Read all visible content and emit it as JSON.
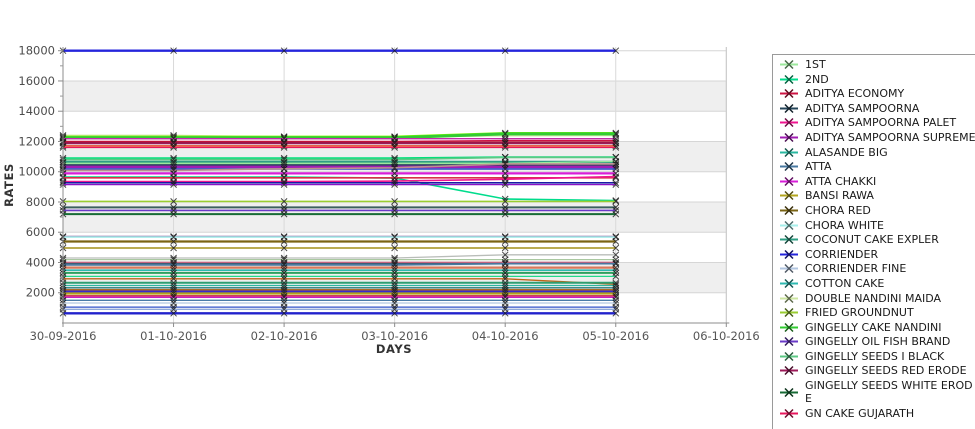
{
  "chart_data": {
    "type": "line",
    "title": "",
    "xlabel": "DAYS",
    "ylabel": "RATES",
    "x": [
      "30-09-2016",
      "01-10-2016",
      "02-10-2016",
      "03-10-2016",
      "04-10-2016",
      "05-10-2016"
    ],
    "x_tick_labels": [
      "30-09-2016",
      "01-10-2016",
      "02-10-2016",
      "03-10-2016",
      "04-10-2016",
      "05-10-2016",
      "06-10-2016"
    ],
    "y_major_ticks": [
      2000,
      4000,
      6000,
      8000,
      10000,
      12000,
      14000,
      16000,
      18000
    ],
    "y_minor_tick_step": 1000,
    "ylim": [
      0,
      18200
    ],
    "grid": "on",
    "band_color": "#efefef",
    "bands": [
      [
        2000,
        4000
      ],
      [
        6000,
        8000
      ],
      [
        10000,
        12000
      ],
      [
        14000,
        16000
      ]
    ],
    "legend_position": "right",
    "marker": "x",
    "marker_color": "#1a1a1a",
    "series": [
      {
        "name": "CORRIENDER",
        "color": "#2525dc",
        "width": 2.4,
        "values": [
          18000,
          18000,
          18000,
          18000,
          18000,
          18000
        ]
      },
      {
        "name": "DOUBLE NANDINI MAIDA",
        "color": "#cde6a2",
        "width": 1.6,
        "values": [
          12400,
          12400,
          12300,
          12300,
          12380,
          12400
        ]
      },
      {
        "name": "",
        "color": "#7cfc00",
        "width": 2,
        "values": [
          12320,
          12320,
          12320,
          12320,
          12560,
          12560
        ]
      },
      {
        "name": "GINGELLY CAKE NANDINI",
        "color": "#32cc32",
        "width": 3,
        "values": [
          12250,
          12250,
          12250,
          12250,
          12500,
          12500
        ]
      },
      {
        "name": "",
        "color": "#c32aa8",
        "width": 1.3,
        "values": [
          12180,
          12180,
          12180,
          12180,
          12180,
          12180
        ]
      },
      {
        "name": "ADITYA ECONOMY",
        "color": "#ce1443",
        "width": 1.6,
        "values": [
          12000,
          12000,
          12000,
          12000,
          12050,
          12050
        ]
      },
      {
        "name": "",
        "color": "#9e1420",
        "width": 1.6,
        "values": [
          11930,
          11930,
          11930,
          11930,
          11930,
          11930
        ]
      },
      {
        "name": "GINGELLY SEEDS RED ERODE",
        "color": "#9c1a58",
        "width": 2,
        "values": [
          11880,
          11880,
          11880,
          11880,
          11880,
          11880
        ]
      },
      {
        "name": "",
        "color": "#e84a30",
        "width": 1.6,
        "values": [
          11710,
          11710,
          11710,
          11710,
          11710,
          11710
        ]
      },
      {
        "name": "GN CAKE GUJARATH",
        "color": "#e8175d",
        "width": 1.3,
        "values": [
          11600,
          11600,
          11600,
          11600,
          11600,
          11600
        ]
      },
      {
        "name": "",
        "color": "#00e07a",
        "width": 1.6,
        "values": [
          10900,
          10900,
          10900,
          10900,
          10970,
          10970
        ]
      },
      {
        "name": "GINGELLY SEEDS I BLACK",
        "color": "#5cc884",
        "width": 1.6,
        "values": [
          10800,
          10800,
          10800,
          10800,
          10950,
          10950
        ]
      },
      {
        "name": "COCONUT CAKE EXPLER",
        "color": "#2e9e83",
        "width": 2.2,
        "values": [
          10650,
          10650,
          10650,
          10650,
          10650,
          10650
        ]
      },
      {
        "name": "1ST",
        "color": "#9ce89c",
        "width": 1.3,
        "values": [
          10560,
          10560,
          10560,
          10560,
          10560,
          10680
        ]
      },
      {
        "name": "ADITYA SAMPOORNA",
        "color": "#25455a",
        "width": 2.2,
        "values": [
          10430,
          10430,
          10430,
          10430,
          10430,
          10430
        ]
      },
      {
        "name": "ADITYA SAMPOORNA SUPREME",
        "color": "#a21cb4",
        "width": 2.6,
        "values": [
          10320,
          10320,
          10320,
          10320,
          10320,
          10320
        ]
      },
      {
        "name": "",
        "color": "#2a46c8",
        "width": 1.6,
        "values": [
          10180,
          10180,
          10180,
          10180,
          10180,
          10180
        ]
      },
      {
        "name": "",
        "color": "#bc8f8f",
        "width": 1.6,
        "values": [
          10090,
          10090,
          10190,
          10260,
          10520,
          10520
        ]
      },
      {
        "name": "ATTA CHAKKI",
        "color": "#d81ed8",
        "width": 2.2,
        "values": [
          9890,
          9890,
          9890,
          9890,
          9890,
          9890
        ]
      },
      {
        "name": "2ND",
        "color": "#00dc8c",
        "width": 1.6,
        "values": [
          9650,
          9650,
          9650,
          9580,
          8200,
          8100
        ]
      },
      {
        "name": "",
        "color": "#d83048",
        "width": 1.6,
        "values": [
          9600,
          9600,
          9600,
          9600,
          9600,
          9600
        ]
      },
      {
        "name": "ADITYA SAMPOORNA PALET",
        "color": "#f01590",
        "width": 1.6,
        "values": [
          9350,
          9350,
          9350,
          9380,
          9500,
          9680
        ]
      },
      {
        "name": "",
        "color": "#1a1aa6",
        "width": 1.6,
        "values": [
          9270,
          9270,
          9270,
          9270,
          9270,
          9270
        ]
      },
      {
        "name": "",
        "color": "#8b12c8",
        "width": 1.3,
        "values": [
          9150,
          9150,
          9150,
          9150,
          9150,
          9150
        ]
      },
      {
        "name": "FRIED GROUNDNUT",
        "color": "#9acd32",
        "width": 1.6,
        "values": [
          8040,
          8040,
          8040,
          8040,
          8040,
          8040
        ]
      },
      {
        "name": "",
        "color": "#3c6060",
        "width": 2,
        "values": [
          7640,
          7640,
          7640,
          7640,
          7640,
          7640
        ]
      },
      {
        "name": "GINGELLY OIL FISH BRAND",
        "color": "#6a3ac8",
        "width": 1.6,
        "values": [
          7440,
          7440,
          7440,
          7440,
          7440,
          7440
        ]
      },
      {
        "name": "GINGELLY SEEDS WHITE ERODE",
        "color": "#176b35",
        "width": 2,
        "values": [
          7200,
          7200,
          7200,
          7200,
          7200,
          7200
        ]
      },
      {
        "name": "",
        "color": "#8e5a9e",
        "width": 1.6,
        "values": [
          5720,
          5720,
          5720,
          5720,
          5720,
          5720
        ]
      },
      {
        "name": "CHORA WHITE",
        "color": "#a6eeea",
        "width": 1.6,
        "values": [
          5680,
          5680,
          5680,
          5680,
          5680,
          5680
        ]
      },
      {
        "name": "CHORA RED",
        "color": "#7a6414",
        "width": 2.2,
        "values": [
          5390,
          5390,
          5390,
          5390,
          5390,
          5390
        ]
      },
      {
        "name": "",
        "color": "#a39018",
        "width": 1.6,
        "values": [
          4960,
          4960,
          4960,
          4960,
          4960,
          4960
        ]
      },
      {
        "name": "",
        "color": "#b9bdb9",
        "width": 1.3,
        "values": [
          4300,
          4300,
          4300,
          4300,
          4510,
          4510
        ]
      },
      {
        "name": "",
        "color": "#a9c8a0",
        "width": 1.3,
        "values": [
          4190,
          4190,
          4190,
          4190,
          4190,
          4190
        ]
      },
      {
        "name": "",
        "color": "#c4647e",
        "width": 1.3,
        "values": [
          4010,
          4010,
          4010,
          4010,
          4010,
          4010
        ]
      },
      {
        "name": "",
        "color": "#3a5f78",
        "width": 1.3,
        "values": [
          3920,
          3920,
          3920,
          3920,
          3920,
          3920
        ]
      },
      {
        "name": "ATTA",
        "color": "#4878a0",
        "width": 1.6,
        "values": [
          3840,
          3840,
          3840,
          3840,
          3920,
          3920
        ]
      },
      {
        "name": "",
        "color": "#d9785a",
        "width": 2.2,
        "values": [
          3660,
          3660,
          3660,
          3660,
          3660,
          3660
        ]
      },
      {
        "name": "COTTON CAKE",
        "color": "#2eb8b0",
        "width": 1.6,
        "values": [
          3490,
          3490,
          3490,
          3490,
          3490,
          3490
        ]
      },
      {
        "name": "",
        "color": "#2ea05e",
        "width": 2,
        "values": [
          3310,
          3310,
          3310,
          3310,
          3310,
          3310
        ]
      },
      {
        "name": "",
        "color": "#21d98a",
        "width": 1.3,
        "values": [
          3080,
          3080,
          3080,
          3080,
          3080,
          3080
        ]
      },
      {
        "name": "",
        "color": "#be6418",
        "width": 1.3,
        "values": [
          2920,
          2920,
          2920,
          2920,
          2920,
          2560
        ]
      },
      {
        "name": "",
        "color": "#2e9e70",
        "width": 2,
        "values": [
          2660,
          2660,
          2660,
          2660,
          2660,
          2660
        ]
      },
      {
        "name": "ALASANDE BIG",
        "color": "#2ab8a0",
        "width": 1.3,
        "values": [
          2480,
          2480,
          2480,
          2480,
          2480,
          2480
        ]
      },
      {
        "name": "",
        "color": "#2a7878",
        "width": 1.3,
        "values": [
          2330,
          2330,
          2330,
          2330,
          2330,
          2330
        ]
      },
      {
        "name": "",
        "color": "#b06a20",
        "width": 2,
        "values": [
          2180,
          2180,
          2180,
          2180,
          2180,
          2180
        ]
      },
      {
        "name": "",
        "color": "#3a2acd",
        "width": 2,
        "values": [
          2080,
          2080,
          2080,
          2080,
          2080,
          2080
        ]
      },
      {
        "name": "BANSI RAWA",
        "color": "#b3a51c",
        "width": 2.2,
        "values": [
          1950,
          1950,
          1950,
          1950,
          1950,
          1950
        ]
      },
      {
        "name": "",
        "color": "#ce2040",
        "width": 1.3,
        "values": [
          1800,
          1800,
          1800,
          1800,
          1800,
          1800
        ]
      },
      {
        "name": "",
        "color": "#c81ec8",
        "width": 1.3,
        "values": [
          1700,
          1700,
          1700,
          1700,
          1700,
          1700
        ]
      },
      {
        "name": "",
        "color": "#4a7ba8",
        "width": 1.3,
        "values": [
          1500,
          1500,
          1500,
          1500,
          1500,
          1500
        ]
      },
      {
        "name": "CORRIENDER FINE",
        "color": "#b2c6e0",
        "width": 1.3,
        "values": [
          1320,
          1320,
          1320,
          1320,
          1320,
          1320
        ]
      },
      {
        "name": "",
        "color": "#3050c8",
        "width": 1.3,
        "values": [
          1050,
          1050,
          1050,
          1050,
          1050,
          1050
        ]
      },
      {
        "name": "",
        "color": "#90a8d8",
        "width": 1.3,
        "values": [
          905,
          905,
          905,
          905,
          905,
          905
        ]
      },
      {
        "name": "",
        "color": "#2222cc",
        "width": 2.4,
        "values": [
          640,
          640,
          640,
          640,
          640,
          640
        ]
      }
    ]
  },
  "legend": {
    "items": [
      {
        "label": "1ST",
        "color": "#9ce89c"
      },
      {
        "label": "2ND",
        "color": "#00dc8c"
      },
      {
        "label": "ADITYA ECONOMY",
        "color": "#ce1443"
      },
      {
        "label": "ADITYA SAMPOORNA",
        "color": "#25455a"
      },
      {
        "label": "ADITYA SAMPOORNA PALET",
        "color": "#f01590"
      },
      {
        "label": "ADITYA SAMPOORNA SUPREME",
        "color": "#a21cb4"
      },
      {
        "label": "ALASANDE BIG",
        "color": "#2ab8a0"
      },
      {
        "label": "ATTA",
        "color": "#4878a0"
      },
      {
        "label": "ATTA CHAKKI",
        "color": "#d81ed8"
      },
      {
        "label": "BANSI RAWA",
        "color": "#b3a51c"
      },
      {
        "label": "CHORA RED",
        "color": "#7a6414"
      },
      {
        "label": "CHORA WHITE",
        "color": "#a6eeea"
      },
      {
        "label": "COCONUT CAKE EXPLER",
        "color": "#2e9e83"
      },
      {
        "label": "CORRIENDER",
        "color": "#2525dc"
      },
      {
        "label": "CORRIENDER FINE",
        "color": "#b2c6e0"
      },
      {
        "label": "COTTON CAKE",
        "color": "#2eb8b0"
      },
      {
        "label": "DOUBLE NANDINI MAIDA",
        "color": "#cde6a2"
      },
      {
        "label": "FRIED GROUNDNUT",
        "color": "#9acd32"
      },
      {
        "label": "GINGELLY CAKE NANDINI",
        "color": "#32cc32"
      },
      {
        "label": "GINGELLY OIL FISH BRAND",
        "color": "#6a3ac8"
      },
      {
        "label": "GINGELLY SEEDS I BLACK",
        "color": "#5cc884"
      },
      {
        "label": "GINGELLY SEEDS RED ERODE",
        "color": "#9c1a58"
      },
      {
        "label": "GINGELLY SEEDS WHITE EROD\nE",
        "color": "#176b35"
      },
      {
        "label": "GN CAKE GUJARATH",
        "color": "#e8175d"
      }
    ]
  }
}
